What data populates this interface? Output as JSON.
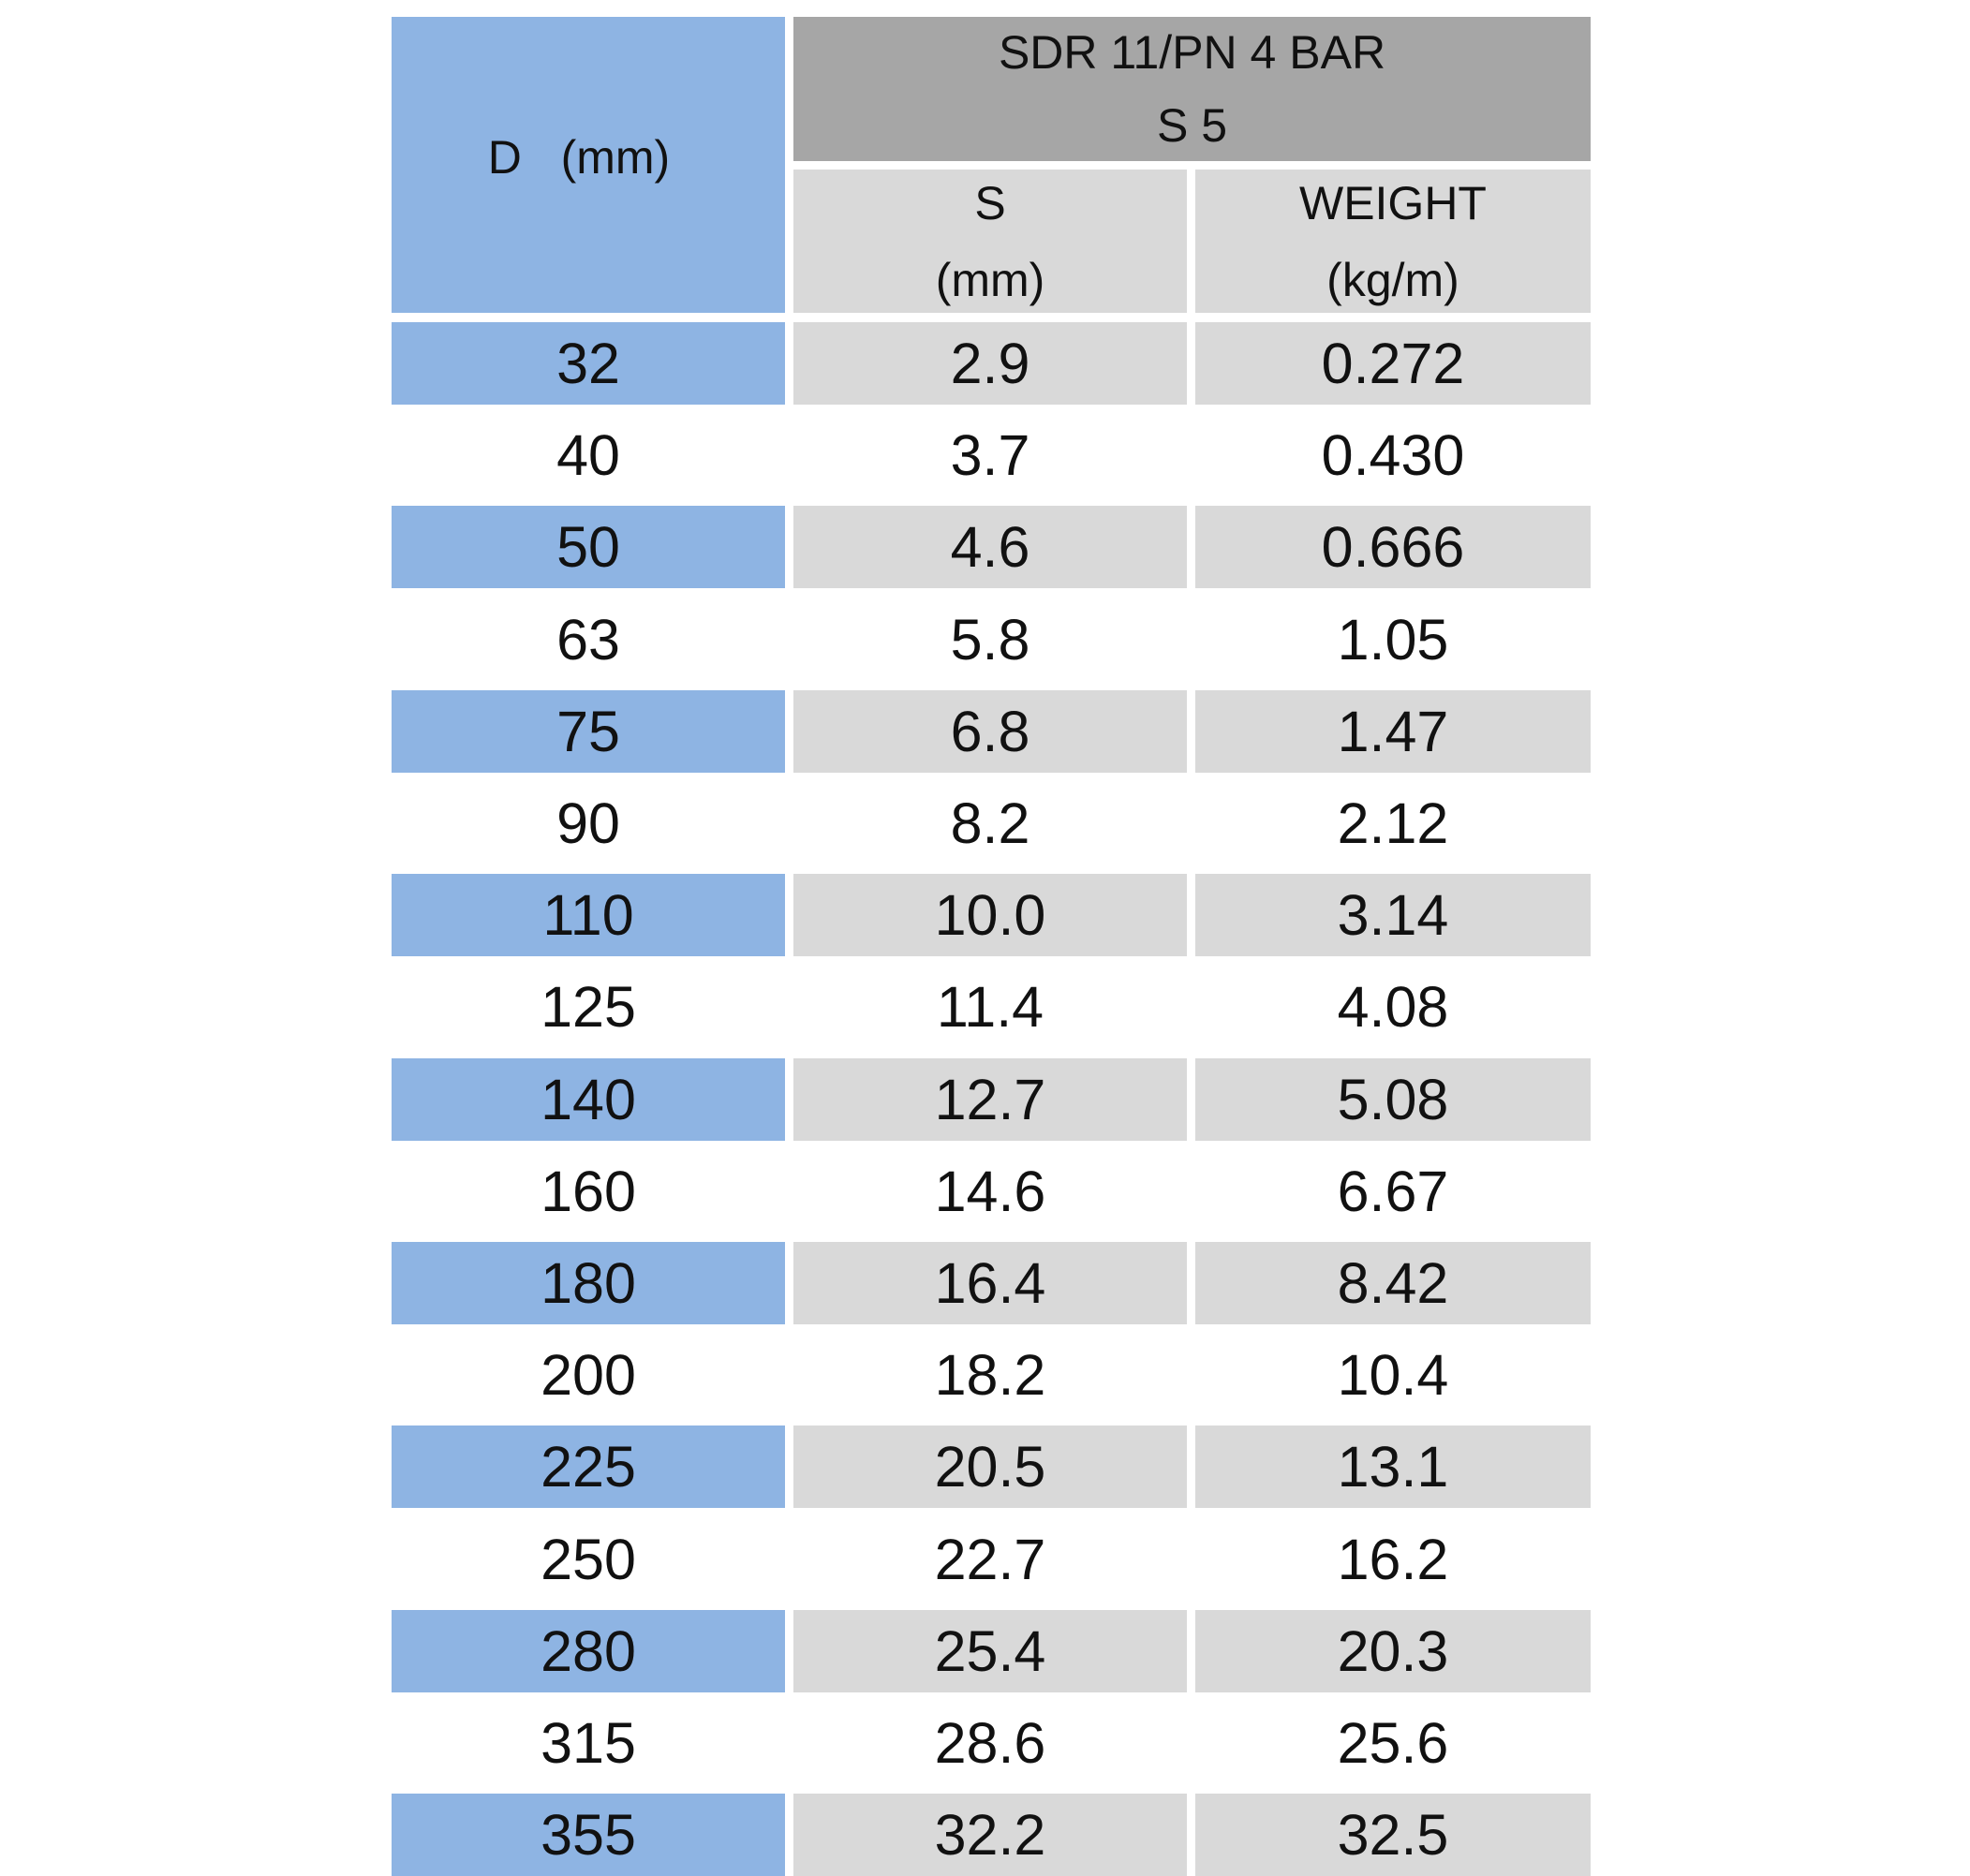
{
  "header": {
    "dimension_label": "D   (mm)",
    "group_title_line1": "SDR 11/PN 4 BAR",
    "group_title_line2": "S 5",
    "col_s_line1": "S",
    "col_s_line2": "(mm)",
    "col_weight_line1": "WEIGHT",
    "col_weight_line2": "(kg/m)"
  },
  "rows": [
    {
      "d": "32",
      "s": "2.9",
      "weight": "0.272"
    },
    {
      "d": "40",
      "s": "3.7",
      "weight": "0.430"
    },
    {
      "d": "50",
      "s": "4.6",
      "weight": "0.666"
    },
    {
      "d": "63",
      "s": "5.8",
      "weight": "1.05"
    },
    {
      "d": "75",
      "s": "6.8",
      "weight": "1.47"
    },
    {
      "d": "90",
      "s": "8.2",
      "weight": "2.12"
    },
    {
      "d": "110",
      "s": "10.0",
      "weight": "3.14"
    },
    {
      "d": "125",
      "s": "11.4",
      "weight": "4.08"
    },
    {
      "d": "140",
      "s": "12.7",
      "weight": "5.08"
    },
    {
      "d": "160",
      "s": "14.6",
      "weight": "6.67"
    },
    {
      "d": "180",
      "s": "16.4",
      "weight": "8.42"
    },
    {
      "d": "200",
      "s": "18.2",
      "weight": "10.4"
    },
    {
      "d": "225",
      "s": "20.5",
      "weight": "13.1"
    },
    {
      "d": "250",
      "s": "22.7",
      "weight": "16.2"
    },
    {
      "d": "280",
      "s": "25.4",
      "weight": "20.3"
    },
    {
      "d": "315",
      "s": "28.6",
      "weight": "25.6"
    },
    {
      "d": "355",
      "s": "32.2",
      "weight": "32.5"
    }
  ],
  "colors": {
    "dimension_column": "#8eb4e3",
    "group_header": "#a6a6a6",
    "sub_header_and_shaded_rows": "#d9d9d9",
    "unshaded_rows": "#ffffff"
  }
}
